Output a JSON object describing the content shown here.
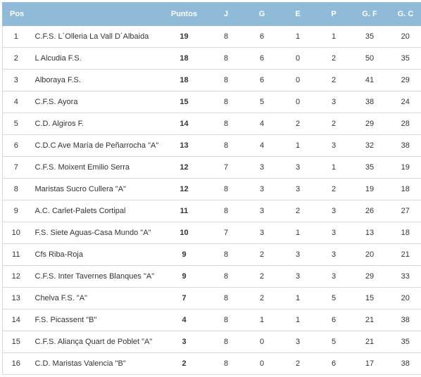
{
  "headers": {
    "pos": "Pos",
    "team": "",
    "points": "Puntos",
    "j": "J",
    "g": "G",
    "e": "E",
    "p": "P",
    "gf": "G. F",
    "gc": "G. C"
  },
  "rows": [
    {
      "pos": "1",
      "team": "C.F.S. L´Olleria La Vall D´Albaida",
      "pts": "19",
      "j": "8",
      "g": "6",
      "e": "1",
      "p": "1",
      "gf": "35",
      "gc": "20"
    },
    {
      "pos": "2",
      "team": "L Alcudia F.S.",
      "pts": "18",
      "j": "8",
      "g": "6",
      "e": "0",
      "p": "2",
      "gf": "50",
      "gc": "35"
    },
    {
      "pos": "3",
      "team": "Alboraya F.S.",
      "pts": "18",
      "j": "8",
      "g": "6",
      "e": "0",
      "p": "2",
      "gf": "41",
      "gc": "29"
    },
    {
      "pos": "4",
      "team": "C.F.S. Ayora",
      "pts": "15",
      "j": "8",
      "g": "5",
      "e": "0",
      "p": "3",
      "gf": "38",
      "gc": "24"
    },
    {
      "pos": "5",
      "team": "C.D. Algiros F.",
      "pts": "14",
      "j": "8",
      "g": "4",
      "e": "2",
      "p": "2",
      "gf": "29",
      "gc": "28"
    },
    {
      "pos": "6",
      "team": "C.D.C Ave María de Peñarrocha \"A\"",
      "pts": "13",
      "j": "8",
      "g": "4",
      "e": "1",
      "p": "3",
      "gf": "32",
      "gc": "38"
    },
    {
      "pos": "7",
      "team": "C.F.S. Moixent Emilio Serra",
      "pts": "12",
      "j": "7",
      "g": "3",
      "e": "3",
      "p": "1",
      "gf": "35",
      "gc": "19"
    },
    {
      "pos": "8",
      "team": "Maristas Sucro Cullera \"A\"",
      "pts": "12",
      "j": "8",
      "g": "3",
      "e": "3",
      "p": "2",
      "gf": "19",
      "gc": "18"
    },
    {
      "pos": "9",
      "team": "A.C. Carlet-Palets Cortipal",
      "pts": "11",
      "j": "8",
      "g": "3",
      "e": "2",
      "p": "3",
      "gf": "26",
      "gc": "27"
    },
    {
      "pos": "10",
      "team": "F.S. Siete Aguas-Casa Mundo \"A\"",
      "pts": "10",
      "j": "7",
      "g": "3",
      "e": "1",
      "p": "3",
      "gf": "13",
      "gc": "18"
    },
    {
      "pos": "11",
      "team": "Cfs Riba-Roja",
      "pts": "9",
      "j": "8",
      "g": "2",
      "e": "3",
      "p": "3",
      "gf": "20",
      "gc": "21"
    },
    {
      "pos": "12",
      "team": "C.F.S. Inter Tavernes Blanques  \"A\"",
      "pts": "9",
      "j": "8",
      "g": "2",
      "e": "3",
      "p": "3",
      "gf": "29",
      "gc": "33"
    },
    {
      "pos": "13",
      "team": "Chelva F.S. \"A\"",
      "pts": "7",
      "j": "8",
      "g": "2",
      "e": "1",
      "p": "5",
      "gf": "15",
      "gc": "20"
    },
    {
      "pos": "14",
      "team": "F.S. Picassent \"B\"",
      "pts": "4",
      "j": "8",
      "g": "1",
      "e": "1",
      "p": "6",
      "gf": "21",
      "gc": "38"
    },
    {
      "pos": "15",
      "team": "C.F.S. Aliança Quart de Poblet \"A\"",
      "pts": "3",
      "j": "8",
      "g": "0",
      "e": "3",
      "p": "5",
      "gf": "21",
      "gc": "35"
    },
    {
      "pos": "16",
      "team": "C.D. Maristas Valencia \"B\"",
      "pts": "2",
      "j": "8",
      "g": "0",
      "e": "2",
      "p": "6",
      "gf": "17",
      "gc": "38"
    }
  ]
}
